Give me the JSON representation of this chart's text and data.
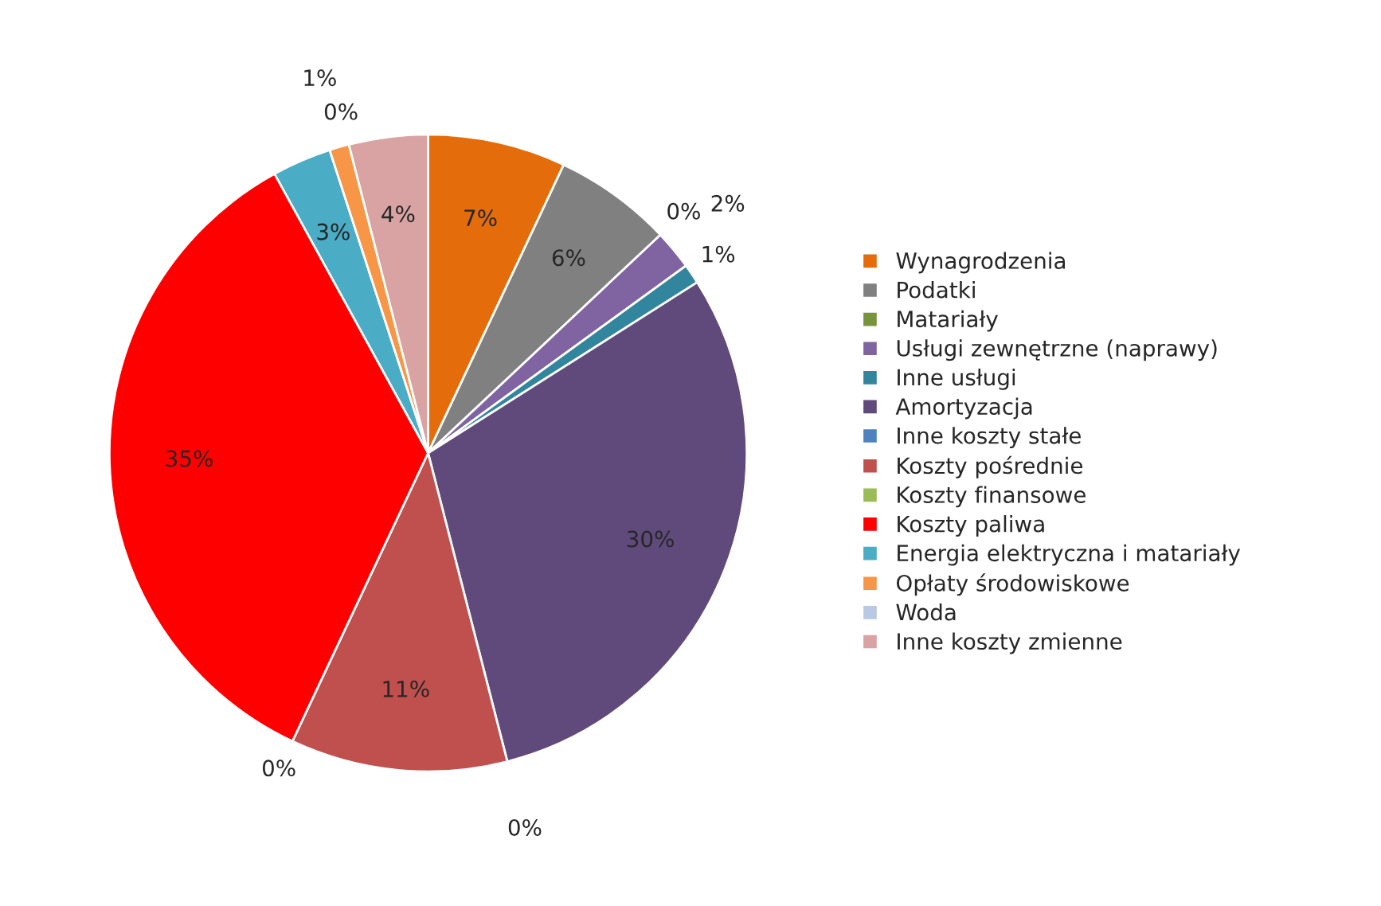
{
  "chart_data": {
    "type": "pie",
    "categories": [
      "Wynagrodzenia",
      "Podatki",
      "Matariały",
      "Usługi zewnętrzne (naprawy)",
      "Inne usługi",
      "Amortyzacja",
      "Inne koszty stałe",
      "Koszty pośrednie",
      "Koszty finansowe",
      "Koszty paliwa",
      "Energia elektryczna i matariały",
      "Opłaty środowiskowe",
      "Woda",
      "Inne koszty zmienne"
    ],
    "values": [
      7,
      6,
      0,
      2,
      1,
      30,
      0,
      11,
      0,
      35,
      3,
      1,
      0,
      4
    ],
    "value_labels": [
      "7%",
      "6%",
      "0%",
      "2%",
      "1%",
      "30%",
      "0%",
      "11%",
      "0%",
      "35%",
      "3%",
      "1%",
      "0%",
      "4%"
    ],
    "colors": [
      "#e46c0a",
      "#808080",
      "#77933c",
      "#8064a2",
      "#31859c",
      "#604a7b",
      "#4f81bd",
      "#c0504d",
      "#9bbb59",
      "#ff0000",
      "#4bacc6",
      "#f79646",
      "#b9c9e4",
      "#d9a3a3"
    ],
    "legend": "right"
  }
}
